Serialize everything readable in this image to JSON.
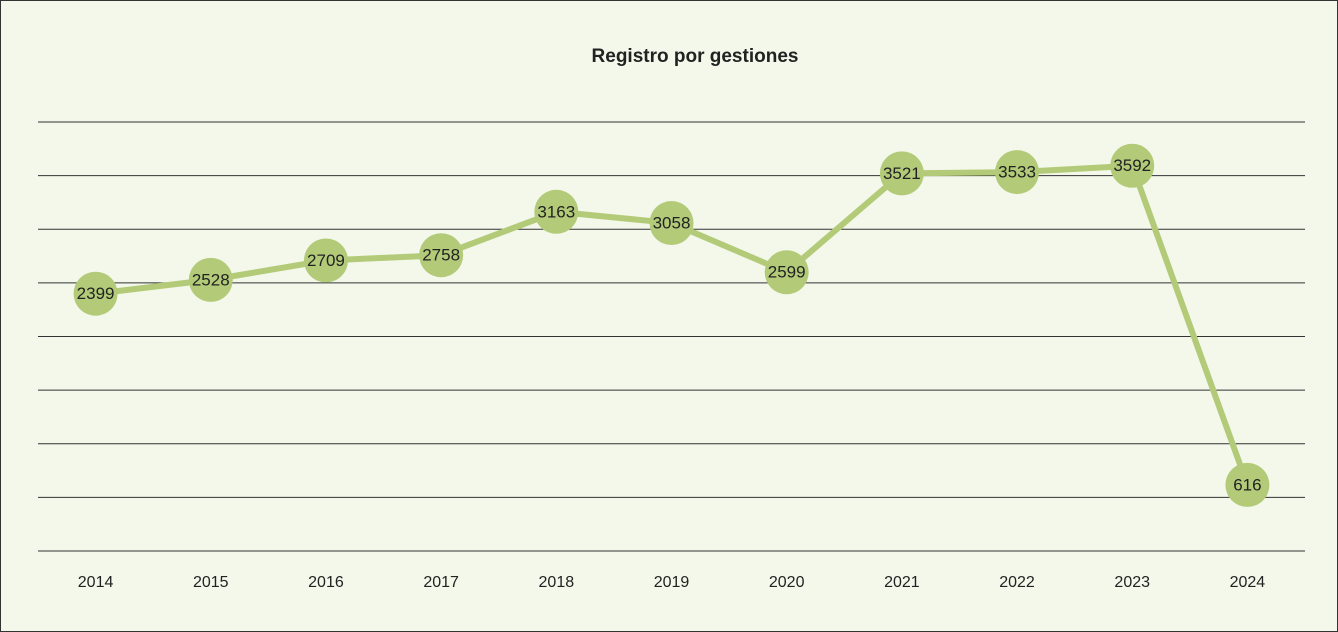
{
  "chart_data": {
    "type": "line",
    "title": "Registro por gestiones",
    "categories": [
      "2014",
      "2015",
      "2016",
      "2017",
      "2018",
      "2019",
      "2020",
      "2021",
      "2022",
      "2023",
      "2024"
    ],
    "values": [
      2399,
      2528,
      2709,
      2758,
      3163,
      3058,
      2599,
      3521,
      3533,
      3592,
      616
    ],
    "color": "#b3cb79",
    "ylim": [
      0,
      4000
    ],
    "yticks": [
      0,
      500,
      1000,
      1500,
      2000,
      2500,
      3000,
      3500,
      4000
    ],
    "grid": true
  }
}
